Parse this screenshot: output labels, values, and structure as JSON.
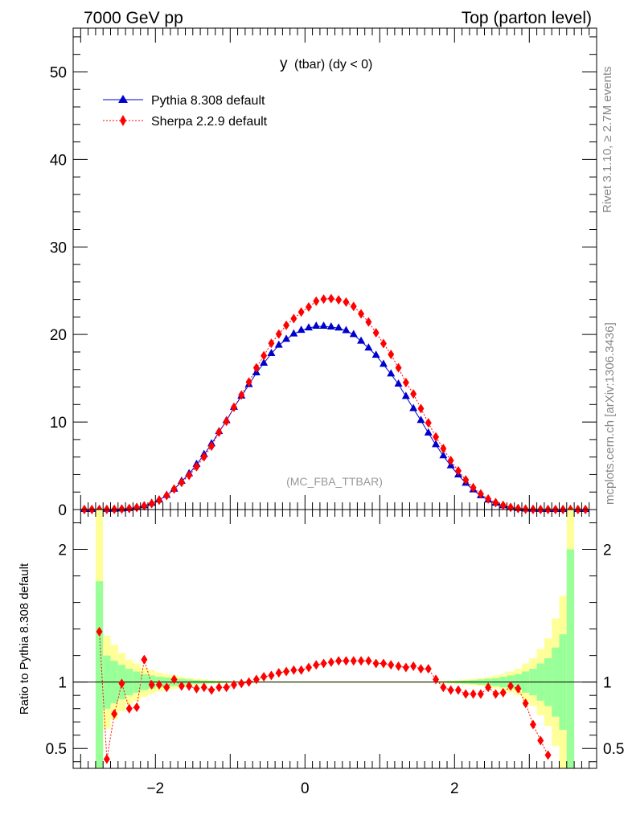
{
  "header": {
    "left": "7000 GeV pp",
    "right": "Top (parton level)"
  },
  "side_labels": {
    "rivet": "Rivet 3.1.10, ≥ 2.7M events",
    "mcplots": "mcplots.cern.ch [arXiv:1306.3436]"
  },
  "chart_data": [
    {
      "type": "line",
      "title_main": "y",
      "title_sub": "(tbar) (dy < 0)",
      "watermark": "(MC_FBA_TTBAR)",
      "xlim": [
        -3.1,
        3.9
      ],
      "ylim": [
        0,
        55
      ],
      "x_ticks": [
        -2,
        0,
        2
      ],
      "y_ticks": [
        0,
        10,
        20,
        30,
        40,
        50
      ],
      "legend_position": "top-left",
      "colors": {
        "pythia": "#0000cc",
        "sherpa": "#ff0000"
      },
      "x": [
        -2.95,
        -2.85,
        -2.75,
        -2.65,
        -2.55,
        -2.45,
        -2.35,
        -2.25,
        -2.15,
        -2.05,
        -1.95,
        -1.85,
        -1.75,
        -1.65,
        -1.55,
        -1.45,
        -1.35,
        -1.25,
        -1.15,
        -1.05,
        -0.95,
        -0.85,
        -0.75,
        -0.65,
        -0.55,
        -0.45,
        -0.35,
        -0.25,
        -0.15,
        -0.05,
        0.05,
        0.15,
        0.25,
        0.35,
        0.45,
        0.55,
        0.65,
        0.75,
        0.85,
        0.95,
        1.05,
        1.15,
        1.25,
        1.35,
        1.45,
        1.55,
        1.65,
        1.75,
        1.85,
        1.95,
        2.05,
        2.15,
        2.25,
        2.35,
        2.45,
        2.55,
        2.65,
        2.75,
        2.85,
        2.95,
        3.05,
        3.15,
        3.25,
        3.35,
        3.45,
        3.55,
        3.65,
        3.75
      ],
      "series": [
        {
          "name": "Pythia 8.308 default",
          "marker": "triangle",
          "values": [
            0,
            0,
            0.01,
            0.01,
            0.02,
            0.06,
            0.12,
            0.24,
            0.43,
            0.71,
            1.09,
            1.62,
            2.32,
            3.23,
            4.09,
            5.15,
            6.28,
            7.51,
            8.9,
            10.15,
            11.67,
            12.96,
            14.27,
            15.61,
            16.71,
            17.81,
            18.77,
            19.44,
            20.05,
            20.47,
            20.74,
            20.93,
            20.93,
            20.84,
            20.73,
            20.43,
            19.98,
            19.23,
            18.45,
            17.62,
            16.58,
            15.48,
            14.32,
            12.91,
            11.52,
            10.17,
            8.74,
            7.4,
            6.13,
            4.99,
            3.95,
            3.0,
            2.24,
            1.57,
            1.08,
            0.72,
            0.42,
            0.22,
            0.12,
            0.05,
            0.02,
            0.01,
            0,
            0,
            0,
            0,
            0,
            0
          ]
        },
        {
          "name": "Sherpa 2.2.9 default",
          "marker": "diamond",
          "values": [
            0,
            0,
            0.01,
            0.01,
            0.02,
            0.06,
            0.11,
            0.23,
            0.41,
            0.68,
            1.07,
            1.59,
            2.34,
            3.1,
            3.9,
            4.89,
            6.03,
            7.24,
            8.84,
            10.08,
            11.68,
            13.08,
            14.56,
            16.2,
            17.57,
            18.99,
            20.05,
            21.05,
            21.82,
            22.56,
            23.14,
            23.8,
            24.04,
            24.1,
            23.95,
            23.7,
            23.21,
            22.36,
            21.43,
            20.2,
            18.96,
            17.72,
            16.2,
            14.51,
            13.21,
            11.54,
            9.9,
            8.3,
            6.97,
            5.6,
            4.42,
            3.39,
            2.5,
            1.79,
            1.21,
            0.79,
            0.48,
            0.24,
            0.11,
            0.04,
            0.01,
            0,
            0,
            0,
            0,
            0,
            0,
            0
          ]
        }
      ]
    },
    {
      "type": "line",
      "ylabel": "Ratio to Pythia 8.308 default",
      "ylim": [
        0.35,
        2.3
      ],
      "y_ticks": [
        0.5,
        1,
        2
      ],
      "x_ticks": [
        -2,
        0,
        2
      ],
      "band_colors": {
        "yellow": "#ffff99",
        "green": "#99ff99"
      },
      "x": [
        -2.75,
        -2.65,
        -2.55,
        -2.45,
        -2.35,
        -2.25,
        -2.15,
        -2.05,
        -1.95,
        -1.85,
        -1.75,
        -1.65,
        -1.55,
        -1.45,
        -1.35,
        -1.25,
        -1.15,
        -1.05,
        -0.95,
        -0.85,
        -0.75,
        -0.65,
        -0.55,
        -0.45,
        -0.35,
        -0.25,
        -0.15,
        -0.05,
        0.05,
        0.15,
        0.25,
        0.35,
        0.45,
        0.55,
        0.65,
        0.75,
        0.85,
        0.95,
        1.05,
        1.15,
        1.25,
        1.35,
        1.45,
        1.55,
        1.65,
        1.75,
        1.85,
        1.95,
        2.05,
        2.15,
        2.25,
        2.35,
        2.45,
        2.55,
        2.65,
        2.75,
        2.85,
        2.95,
        3.05,
        3.15,
        3.25
      ],
      "series": [
        {
          "name": "Sherpa 2.2.9 default",
          "values": [
            1.38,
            0.42,
            0.76,
            0.99,
            0.8,
            0.81,
            1.17,
            0.98,
            0.98,
            0.96,
            1.02,
            0.97,
            0.97,
            0.95,
            0.96,
            0.94,
            0.96,
            0.96,
            0.98,
            0.99,
            1.0,
            1.02,
            1.04,
            1.05,
            1.07,
            1.08,
            1.09,
            1.09,
            1.11,
            1.13,
            1.14,
            1.15,
            1.16,
            1.16,
            1.16,
            1.16,
            1.16,
            1.14,
            1.14,
            1.13,
            1.12,
            1.11,
            1.12,
            1.1,
            1.1,
            1.02,
            0.96,
            0.94,
            0.94,
            0.91,
            0.91,
            0.91,
            0.96,
            0.91,
            0.92,
            0.97,
            0.95,
            0.84,
            0.68,
            0.56,
            0.45
          ]
        }
      ],
      "bands": {
        "x_edges": [
          -2.8,
          -2.7,
          -2.6,
          -2.5,
          -2.4,
          -2.3,
          -2.2,
          -2.1,
          -2.0,
          -1.9,
          -1.8,
          -1.7,
          -1.6,
          -1.5,
          -1.4,
          -1.3,
          -1.2,
          -1.1,
          -1.0,
          1.7,
          1.8,
          1.9,
          2.0,
          2.1,
          2.2,
          2.3,
          2.4,
          2.5,
          2.6,
          2.7,
          2.8,
          2.9,
          3.0,
          3.1,
          3.2,
          3.3,
          3.4,
          3.5,
          3.6
        ],
        "yellow_half": [
          1.4,
          0.35,
          0.28,
          0.22,
          0.17,
          0.14,
          0.11,
          0.09,
          0.07,
          0.06,
          0.05,
          0.04,
          0.03,
          0.025,
          0.02,
          0.015,
          0.012,
          0.01,
          0.005,
          0.005,
          0.01,
          0.012,
          0.015,
          0.02,
          0.025,
          0.03,
          0.04,
          0.05,
          0.06,
          0.08,
          0.1,
          0.14,
          0.18,
          0.25,
          0.33,
          0.48,
          0.65,
          1.4
        ],
        "green_half": [
          0.76,
          0.2,
          0.16,
          0.13,
          0.1,
          0.08,
          0.06,
          0.05,
          0.04,
          0.035,
          0.03,
          0.025,
          0.02,
          0.015,
          0.012,
          0.01,
          0.008,
          0.006,
          0.003,
          0.003,
          0.006,
          0.008,
          0.01,
          0.012,
          0.015,
          0.02,
          0.025,
          0.03,
          0.04,
          0.05,
          0.06,
          0.08,
          0.1,
          0.14,
          0.18,
          0.26,
          0.36,
          1.0
        ]
      }
    }
  ]
}
